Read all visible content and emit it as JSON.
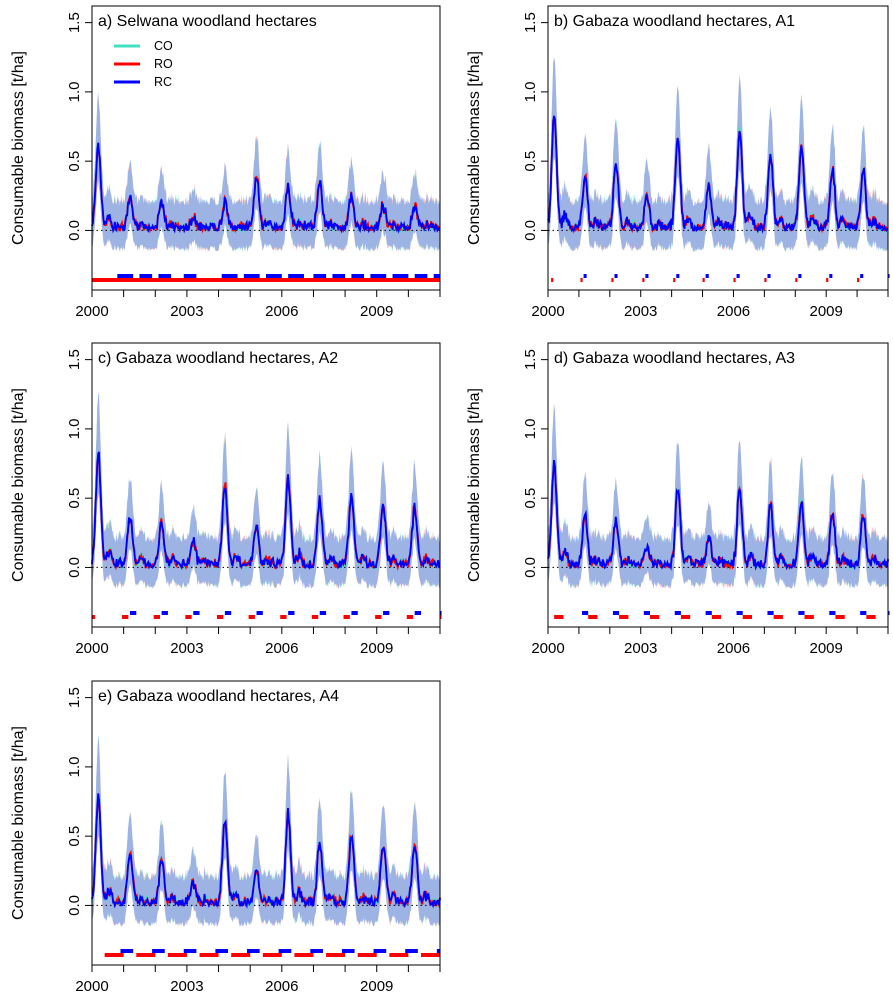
{
  "colors": {
    "CO": "#40e0c0",
    "RO": "#ff0000",
    "RC": "#0000ff",
    "band_CO": "#7fffd4",
    "band_RO": "#ff7f7f",
    "band_RC": "#6a7fff"
  },
  "legend": [
    {
      "key": "CO",
      "label": "CO",
      "color": "#40e0c0"
    },
    {
      "key": "RO",
      "label": "RO",
      "color": "#ff0000"
    },
    {
      "key": "RC",
      "label": "RC",
      "color": "#0000ff"
    }
  ],
  "chart_data": [
    {
      "type": "line",
      "title": "a) Selwana woodland hectares",
      "ylabel": "Consumable biomass [t/ha]",
      "xlabel": "",
      "x_ticks": [
        "2000",
        "2003",
        "2006",
        "2009"
      ],
      "y_ticks": [
        "0.0",
        "0.5",
        "1.0",
        "1.5"
      ],
      "xlim": [
        2000,
        2011
      ],
      "ylim": [
        -0.4,
        1.6
      ],
      "zero_line": true,
      "legend_position": "top-left",
      "peaks": [
        0.58,
        0.22,
        0.18,
        0.08,
        0.18,
        0.38,
        0.3,
        0.32,
        0.24,
        0.16
      ],
      "rain_scale": 1.0,
      "band_width": 0.3,
      "rc_bottom_marks": [
        [
          2000.8,
          2001.3
        ],
        [
          2001.5,
          2001.9
        ],
        [
          2002.1,
          2002.5
        ],
        [
          2002.9,
          2003.3
        ],
        [
          2004.1,
          2004.6
        ],
        [
          2004.8,
          2005.3
        ],
        [
          2005.5,
          2006.0
        ],
        [
          2006.2,
          2006.7
        ],
        [
          2007.0,
          2007.4
        ],
        [
          2007.6,
          2008.0
        ],
        [
          2008.2,
          2008.6
        ],
        [
          2008.8,
          2009.3
        ],
        [
          2009.5,
          2010.0
        ],
        [
          2010.2,
          2010.6
        ],
        [
          2010.8,
          2011.0
        ]
      ],
      "ro_bottom_marks": [
        [
          2000.0,
          2011.0
        ]
      ],
      "series": [
        {
          "name": "CO",
          "kind": "line"
        },
        {
          "name": "RO",
          "kind": "line"
        },
        {
          "name": "RC",
          "kind": "line"
        }
      ]
    },
    {
      "type": "line",
      "title": "b) Gabaza woodland hectares, A1",
      "ylabel": "Consumable biomass [t/ha]",
      "xlabel": "",
      "x_ticks": [
        "2000",
        "2003",
        "2006",
        "2009"
      ],
      "y_ticks": [
        "0.0",
        "0.5",
        "1.0",
        "1.5"
      ],
      "xlim": [
        2000,
        2011
      ],
      "ylim": [
        -0.4,
        1.6
      ],
      "zero_line": true,
      "peaks": [
        0.82,
        0.38,
        0.48,
        0.22,
        0.66,
        0.3,
        0.72,
        0.52,
        0.58,
        0.42
      ],
      "rain_scale": 1.0,
      "band_width": 0.3,
      "rc_bottom_marks": [
        [
          2001.15,
          2001.25
        ],
        [
          2002.15,
          2002.25
        ],
        [
          2003.15,
          2003.25
        ],
        [
          2004.15,
          2004.25
        ],
        [
          2005.1,
          2005.2
        ],
        [
          2006.1,
          2006.2
        ],
        [
          2007.1,
          2007.2
        ],
        [
          2008.1,
          2008.2
        ],
        [
          2009.1,
          2009.2
        ],
        [
          2010.1,
          2010.2
        ],
        [
          2011.0,
          2011.05
        ]
      ],
      "ro_bottom_marks": [
        [
          2000.1,
          2000.17
        ],
        [
          2001.05,
          2001.12
        ],
        [
          2002.05,
          2002.12
        ],
        [
          2003.05,
          2003.12
        ],
        [
          2004.05,
          2004.12
        ],
        [
          2005.0,
          2005.07
        ],
        [
          2006.0,
          2006.07
        ],
        [
          2007.0,
          2007.07
        ],
        [
          2008.0,
          2008.07
        ],
        [
          2009.0,
          2009.07
        ],
        [
          2010.0,
          2010.07
        ]
      ],
      "series": [
        {
          "name": "CO",
          "kind": "line"
        },
        {
          "name": "RO",
          "kind": "line"
        },
        {
          "name": "RC",
          "kind": "line"
        }
      ]
    },
    {
      "type": "line",
      "title": "c) Gabaza woodland hectares, A2",
      "ylabel": "Consumable biomass [t/ha]",
      "xlabel": "",
      "x_ticks": [
        "2000",
        "2003",
        "2006",
        "2009"
      ],
      "y_ticks": [
        "0.0",
        "0.5",
        "1.0",
        "1.5"
      ],
      "xlim": [
        2000,
        2011
      ],
      "ylim": [
        -0.4,
        1.6
      ],
      "zero_line": true,
      "peaks": [
        0.8,
        0.34,
        0.3,
        0.18,
        0.58,
        0.28,
        0.62,
        0.46,
        0.5,
        0.42
      ],
      "rain_scale": 1.0,
      "band_width": 0.3,
      "rc_bottom_marks": [
        [
          2001.2,
          2001.4
        ],
        [
          2002.2,
          2002.4
        ],
        [
          2003.2,
          2003.4
        ],
        [
          2004.2,
          2004.4
        ],
        [
          2005.2,
          2005.4
        ],
        [
          2006.2,
          2006.4
        ],
        [
          2007.2,
          2007.4
        ],
        [
          2008.2,
          2008.4
        ],
        [
          2009.2,
          2009.4
        ],
        [
          2010.2,
          2010.4
        ],
        [
          2011.0,
          2011.05
        ]
      ],
      "ro_bottom_marks": [
        [
          2000.0,
          2000.1
        ],
        [
          2000.95,
          2001.15
        ],
        [
          2001.95,
          2002.15
        ],
        [
          2002.95,
          2003.15
        ],
        [
          2003.95,
          2004.15
        ],
        [
          2004.95,
          2005.15
        ],
        [
          2005.95,
          2006.15
        ],
        [
          2006.95,
          2007.15
        ],
        [
          2007.95,
          2008.15
        ],
        [
          2008.95,
          2009.15
        ],
        [
          2009.95,
          2010.15
        ],
        [
          2011.0,
          2011.05
        ]
      ],
      "series": [
        {
          "name": "CO",
          "kind": "line"
        },
        {
          "name": "RO",
          "kind": "line"
        },
        {
          "name": "RC",
          "kind": "line"
        }
      ]
    },
    {
      "type": "line",
      "title": "d) Gabaza woodland hectares, A3",
      "ylabel": "Consumable biomass [t/ha]",
      "xlabel": "",
      "x_ticks": [
        "2000",
        "2003",
        "2006",
        "2009"
      ],
      "y_ticks": [
        "0.0",
        "0.5",
        "1.0",
        "1.5"
      ],
      "xlim": [
        2000,
        2011
      ],
      "ylim": [
        -0.4,
        1.6
      ],
      "zero_line": true,
      "peaks": [
        0.74,
        0.36,
        0.34,
        0.12,
        0.56,
        0.2,
        0.56,
        0.44,
        0.46,
        0.36
      ],
      "rain_scale": 1.0,
      "band_width": 0.3,
      "rc_bottom_marks": [
        [
          2001.1,
          2001.3
        ],
        [
          2002.1,
          2002.3
        ],
        [
          2003.1,
          2003.3
        ],
        [
          2004.1,
          2004.3
        ],
        [
          2005.1,
          2005.3
        ],
        [
          2006.1,
          2006.3
        ],
        [
          2007.1,
          2007.3
        ],
        [
          2008.1,
          2008.3
        ],
        [
          2009.1,
          2009.3
        ],
        [
          2010.1,
          2010.3
        ],
        [
          2011.0,
          2011.05
        ]
      ],
      "ro_bottom_marks": [
        [
          2000.2,
          2000.5
        ],
        [
          2001.3,
          2001.6
        ],
        [
          2002.3,
          2002.6
        ],
        [
          2003.3,
          2003.6
        ],
        [
          2004.3,
          2004.6
        ],
        [
          2005.3,
          2005.6
        ],
        [
          2006.3,
          2006.6
        ],
        [
          2007.3,
          2007.6
        ],
        [
          2008.3,
          2008.6
        ],
        [
          2009.3,
          2009.6
        ],
        [
          2010.3,
          2010.6
        ]
      ],
      "series": [
        {
          "name": "CO",
          "kind": "line"
        },
        {
          "name": "RO",
          "kind": "line"
        },
        {
          "name": "RC",
          "kind": "line"
        }
      ]
    },
    {
      "type": "line",
      "title": "e) Gabaza woodland hectares, A4",
      "ylabel": "Consumable biomass [t/ha]",
      "xlabel": "",
      "x_ticks": [
        "2000",
        "2003",
        "2006",
        "2009"
      ],
      "y_ticks": [
        "0.0",
        "0.5",
        "1.0",
        "1.5"
      ],
      "xlim": [
        2000,
        2011
      ],
      "ylim": [
        -0.4,
        1.6
      ],
      "zero_line": true,
      "peaks": [
        0.76,
        0.36,
        0.32,
        0.14,
        0.6,
        0.24,
        0.64,
        0.44,
        0.48,
        0.42
      ],
      "rain_scale": 1.0,
      "band_width": 0.3,
      "rc_bottom_marks": [
        [
          2000.9,
          2001.3
        ],
        [
          2001.9,
          2002.3
        ],
        [
          2002.9,
          2003.3
        ],
        [
          2003.9,
          2004.3
        ],
        [
          2004.9,
          2005.3
        ],
        [
          2005.9,
          2006.3
        ],
        [
          2006.9,
          2007.3
        ],
        [
          2007.9,
          2008.3
        ],
        [
          2008.9,
          2009.3
        ],
        [
          2009.9,
          2010.3
        ],
        [
          2010.9,
          2011.0
        ]
      ],
      "ro_bottom_marks": [
        [
          2000.4,
          2001.0
        ],
        [
          2001.4,
          2002.0
        ],
        [
          2002.4,
          2003.0
        ],
        [
          2003.4,
          2004.0
        ],
        [
          2004.4,
          2005.0
        ],
        [
          2005.4,
          2006.0
        ],
        [
          2006.4,
          2007.0
        ],
        [
          2007.4,
          2008.0
        ],
        [
          2008.4,
          2009.0
        ],
        [
          2009.4,
          2010.0
        ],
        [
          2010.4,
          2011.0
        ]
      ],
      "series": [
        {
          "name": "CO",
          "kind": "line"
        },
        {
          "name": "RO",
          "kind": "line"
        },
        {
          "name": "RC",
          "kind": "line"
        }
      ]
    }
  ]
}
